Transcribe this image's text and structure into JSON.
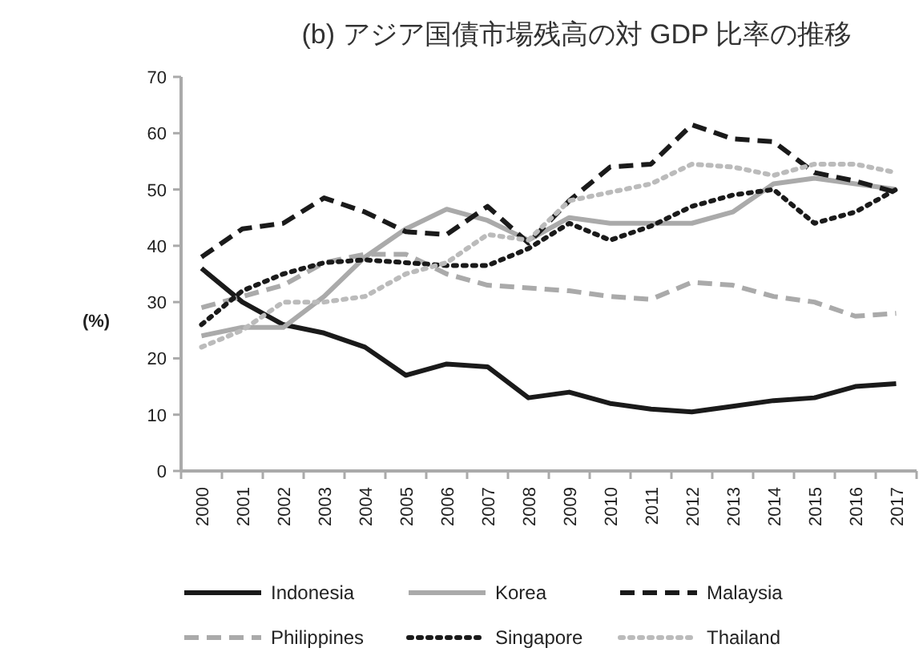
{
  "chart_data": {
    "type": "line",
    "title": "(b) アジア国債市場残高の対 GDP 比率の推移",
    "ylabel": "(%)",
    "categories": [
      "2000",
      "2001",
      "2002",
      "2003",
      "2004",
      "2005",
      "2006",
      "2007",
      "2008",
      "2009",
      "2010",
      "2011",
      "2012",
      "2013",
      "2014",
      "2015",
      "2016",
      "2017"
    ],
    "ylim": [
      0,
      70
    ],
    "yticks": [
      0,
      10,
      20,
      30,
      40,
      50,
      60,
      70
    ],
    "grid": false,
    "legend": "bottom",
    "marker": "none",
    "series": [
      {
        "name": "Indonesia",
        "color": "#1a1a1a",
        "line_style": "solid",
        "values": [
          36,
          30,
          26,
          24.5,
          22,
          17,
          19,
          18.5,
          13,
          14,
          12,
          11,
          10.5,
          11.5,
          12.5,
          13,
          15,
          15.5
        ]
      },
      {
        "name": "Korea",
        "color": "#aaaaaa",
        "line_style": "solid",
        "values": [
          24,
          25.5,
          25.5,
          31,
          38,
          43,
          46.5,
          44.5,
          41,
          45,
          44,
          44,
          44,
          46,
          51,
          52,
          51,
          50
        ]
      },
      {
        "name": "Malaysia",
        "color": "#1a1a1a",
        "line_style": "dashed",
        "values": [
          38,
          43,
          44,
          48.5,
          46,
          42.5,
          42,
          47,
          40.5,
          48,
          54,
          54.5,
          61.5,
          59,
          58.5,
          53,
          51.5,
          49.5
        ]
      },
      {
        "name": "Philippines",
        "color": "#aaaaaa",
        "line_style": "dashed",
        "values": [
          29,
          31,
          33,
          37,
          38.5,
          38.5,
          35,
          33,
          32.5,
          32,
          31,
          30.5,
          33.5,
          33,
          31,
          30,
          27.5,
          28
        ]
      },
      {
        "name": "Singapore",
        "color": "#1a1a1a",
        "line_style": "dotted",
        "values": [
          26,
          32,
          35,
          37,
          37.5,
          37,
          36.5,
          36.5,
          39.5,
          44,
          41,
          43.5,
          47,
          49,
          50,
          44,
          46,
          50
        ]
      },
      {
        "name": "Thailand",
        "color": "#bbbbbb",
        "line_style": "dotted",
        "values": [
          22,
          25,
          30,
          30,
          31,
          35,
          37,
          42,
          41,
          48,
          49.5,
          51,
          54.5,
          54,
          52.5,
          54.5,
          54.5,
          53
        ]
      }
    ]
  }
}
